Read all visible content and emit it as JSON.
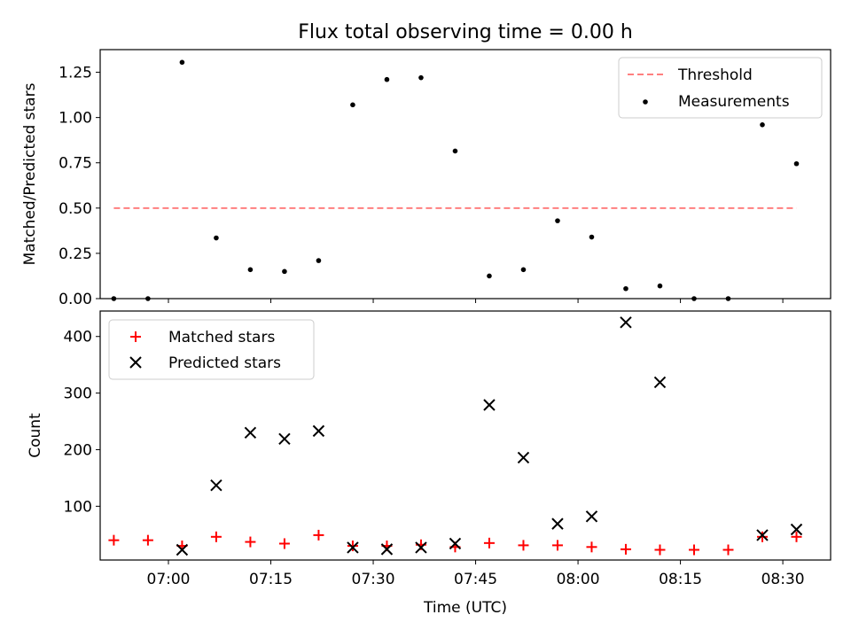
{
  "figure": {
    "title": "Flux total observing time = 0.00 h"
  },
  "chart_data": [
    {
      "type": "scatter",
      "title": "Flux total observing time = 0.00 h",
      "xlabel": "",
      "ylabel": "Matched/Predicted stars",
      "xlim": [
        "06:50",
        "08:37"
      ],
      "ylim": [
        0,
        1.375
      ],
      "yticks": [
        "0.00",
        "0.25",
        "0.50",
        "0.75",
        "1.00",
        "1.25"
      ],
      "grid": false,
      "legend_position": "top-right",
      "threshold": {
        "name": "Threshold",
        "value": 0.5,
        "x_start": "06:52",
        "x_end": "08:32",
        "color": "#ff7f7f"
      },
      "series": [
        {
          "name": "Measurements",
          "color": "#000000",
          "x": [
            "06:52",
            "06:57",
            "07:02",
            "07:07",
            "07:12",
            "07:17",
            "07:22",
            "07:27",
            "07:32",
            "07:37",
            "07:42",
            "07:47",
            "07:52",
            "07:57",
            "08:02",
            "08:07",
            "08:12",
            "08:17",
            "08:22",
            "08:27",
            "08:32"
          ],
          "y": [
            0.0,
            0.0,
            1.305,
            0.335,
            0.16,
            0.15,
            0.21,
            1.07,
            1.21,
            1.22,
            0.815,
            0.125,
            0.16,
            0.43,
            0.34,
            0.055,
            0.07,
            0.0,
            0.0,
            0.96,
            0.745
          ]
        }
      ]
    },
    {
      "type": "scatter",
      "title": "",
      "xlabel": "Time (UTC)",
      "ylabel": "Count",
      "xlim": [
        "06:50",
        "08:37"
      ],
      "ylim": [
        5,
        445
      ],
      "xticks": [
        "07:00",
        "07:15",
        "07:30",
        "07:45",
        "08:00",
        "08:15",
        "08:30"
      ],
      "yticks": [
        "100",
        "200",
        "300",
        "400"
      ],
      "grid": false,
      "legend_position": "top-left",
      "series": [
        {
          "name": "Matched stars",
          "marker": "+",
          "color": "#ff0000",
          "x": [
            "06:52",
            "06:57",
            "07:02",
            "07:07",
            "07:12",
            "07:17",
            "07:22",
            "07:27",
            "07:32",
            "07:37",
            "07:42",
            "07:47",
            "07:52",
            "07:57",
            "08:02",
            "08:07",
            "08:12",
            "08:17",
            "08:22",
            "08:27",
            "08:32"
          ],
          "y": [
            40,
            40,
            30,
            46,
            37,
            34,
            49,
            30,
            30,
            32,
            28,
            35,
            31,
            31,
            28,
            24,
            23,
            23,
            23,
            46,
            46
          ]
        },
        {
          "name": "Predicted stars",
          "marker": "x",
          "color": "#000000",
          "x": [
            "07:02",
            "07:07",
            "07:12",
            "07:17",
            "07:22",
            "07:27",
            "07:32",
            "07:37",
            "07:42",
            "07:47",
            "07:52",
            "07:57",
            "08:02",
            "08:07",
            "08:12",
            "08:27",
            "08:32"
          ],
          "y": [
            23,
            137,
            230,
            219,
            233,
            27,
            24,
            27,
            34,
            279,
            186,
            69,
            82,
            425,
            319,
            49,
            59
          ]
        }
      ]
    }
  ]
}
